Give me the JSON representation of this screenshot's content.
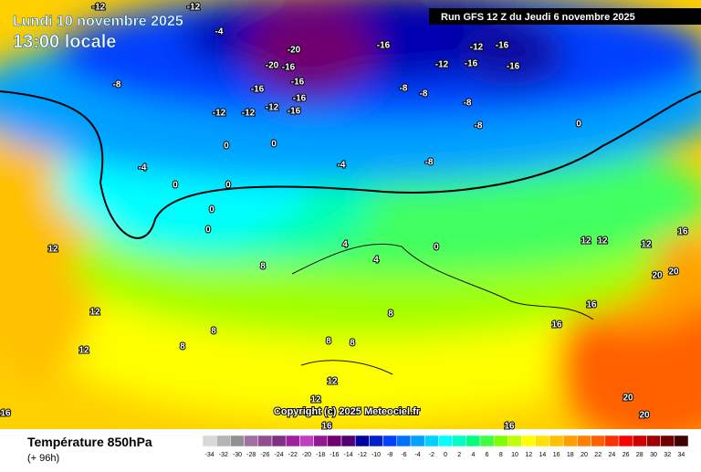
{
  "header": {
    "date": "Lundi 10 novembre 2025",
    "time": "13:00 locale",
    "run": "Run GFS 12 Z du Jeudi 6 novembre 2025"
  },
  "copyright": "Copyright (c) 2025 Meteociel.fr",
  "footer": {
    "title": "Température 850hPa",
    "lead": "(+ 96h)"
  },
  "legend": {
    "values": [
      -34,
      -32,
      -30,
      -28,
      -26,
      -24,
      -22,
      -20,
      -18,
      -16,
      -14,
      -12,
      -10,
      -8,
      -6,
      -4,
      -2,
      0,
      2,
      4,
      6,
      8,
      10,
      12,
      14,
      16,
      18,
      20,
      22,
      24,
      26,
      28,
      30,
      32,
      34
    ],
    "colors": [
      "#d8d8d8",
      "#b4b4b4",
      "#909090",
      "#a070a0",
      "#905090",
      "#803080",
      "#a020a0",
      "#c040c0",
      "#901890",
      "#700070",
      "#500070",
      "#0000a0",
      "#0020d0",
      "#0040ff",
      "#0070ff",
      "#00a0ff",
      "#00d0ff",
      "#00ffff",
      "#00ffc0",
      "#00ff80",
      "#40ff40",
      "#80ff00",
      "#c0ff00",
      "#ffff00",
      "#ffe000",
      "#ffc000",
      "#ffa000",
      "#ff8000",
      "#ff6000",
      "#ff3000",
      "#ff0000",
      "#d00000",
      "#a00000",
      "#700000",
      "#400000"
    ]
  },
  "contour_labels": [
    -12,
    -4,
    -12,
    -8,
    -20,
    -16,
    -20,
    -16,
    -16,
    -16,
    -12,
    -12,
    -12,
    -16,
    -16,
    -12,
    -12,
    -16,
    -16,
    -16,
    -8,
    -8,
    -8,
    -8,
    -4,
    -4,
    -8,
    0,
    0,
    0,
    0,
    0,
    0,
    0,
    0,
    4,
    4,
    8,
    8,
    8,
    8,
    8,
    8,
    12,
    12,
    12,
    12,
    12,
    16,
    16,
    16,
    20,
    20,
    20,
    16,
    16,
    12,
    12,
    12,
    20,
    16
  ]
}
